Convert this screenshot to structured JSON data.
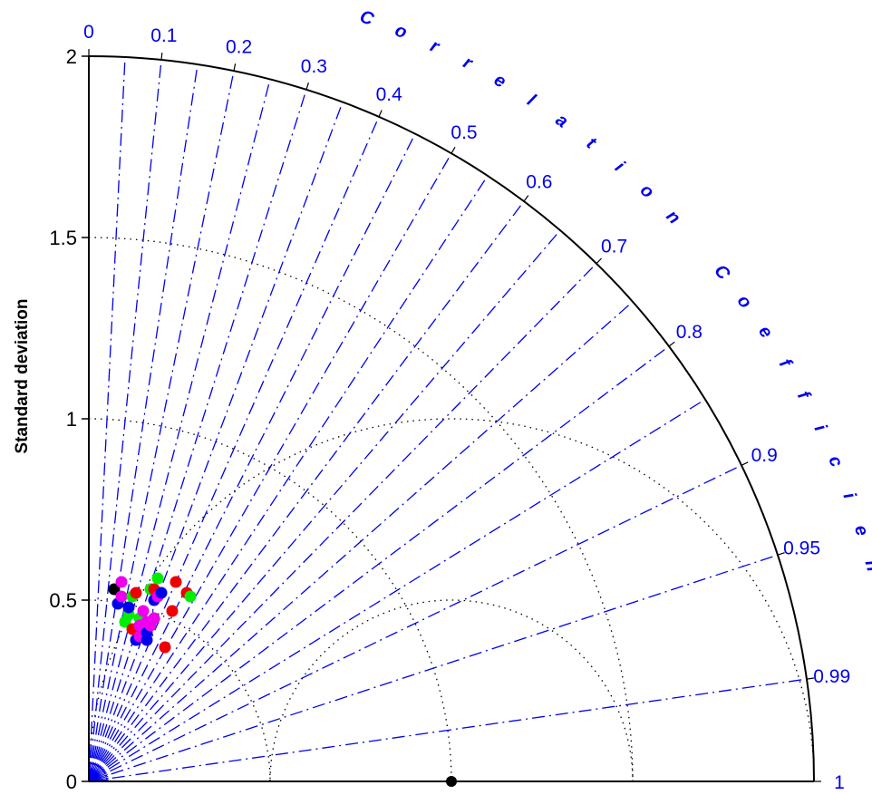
{
  "chart_data": {
    "type": "scatter",
    "subtype": "taylor-diagram",
    "title": "",
    "ylabel": "Standard deviation",
    "arc_label": "Correlation Coefficient",
    "std_max": 2,
    "std_ticks": [
      {
        "value": 0,
        "label": "0"
      },
      {
        "value": 0.5,
        "label": "0.5"
      },
      {
        "value": 1,
        "label": "1"
      },
      {
        "value": 1.5,
        "label": "1.5"
      },
      {
        "value": 2,
        "label": "2"
      }
    ],
    "correlation_ticks": [
      {
        "value": 0,
        "label": "0"
      },
      {
        "value": 0.1,
        "label": "0.1"
      },
      {
        "value": 0.2,
        "label": "0.2"
      },
      {
        "value": 0.3,
        "label": "0.3"
      },
      {
        "value": 0.4,
        "label": "0.4"
      },
      {
        "value": 0.5,
        "label": "0.5"
      },
      {
        "value": 0.6,
        "label": "0.6"
      },
      {
        "value": 0.7,
        "label": "0.7"
      },
      {
        "value": 0.8,
        "label": "0.8"
      },
      {
        "value": 0.9,
        "label": "0.9"
      },
      {
        "value": 0.95,
        "label": "0.95"
      },
      {
        "value": 0.99,
        "label": "0.99"
      },
      {
        "value": 1,
        "label": "1"
      }
    ],
    "std_arcs": [
      0.5,
      1,
      1.5
    ],
    "rms_arcs_centered_on_reference": [
      0.5,
      1.0
    ],
    "reference_point": {
      "std": 1.0,
      "corr": 1.0,
      "color": "#000000"
    },
    "colors": {
      "axis": "#000000",
      "correlation": "#0000ee",
      "red": "#ee0000",
      "green": "#00ee00",
      "blue": "#0000ee",
      "magenta": "#ee00ee",
      "black": "#000000"
    },
    "points": [
      {
        "x": 0.07,
        "y": 0.53,
        "color": "#000000"
      },
      {
        "x": 0.08,
        "y": 0.49,
        "color": "#0000ee"
      },
      {
        "x": 0.09,
        "y": 0.55,
        "color": "#ee00ee"
      },
      {
        "x": 0.09,
        "y": 0.51,
        "color": "#ee00ee"
      },
      {
        "x": 0.1,
        "y": 0.44,
        "color": "#00ee00"
      },
      {
        "x": 0.11,
        "y": 0.46,
        "color": "#00ee00"
      },
      {
        "x": 0.11,
        "y": 0.48,
        "color": "#0000ee"
      },
      {
        "x": 0.12,
        "y": 0.42,
        "color": "#ee0000"
      },
      {
        "x": 0.12,
        "y": 0.51,
        "color": "#00ee00"
      },
      {
        "x": 0.13,
        "y": 0.52,
        "color": "#ee0000"
      },
      {
        "x": 0.14,
        "y": 0.45,
        "color": "#00ee00"
      },
      {
        "x": 0.13,
        "y": 0.39,
        "color": "#0000ee"
      },
      {
        "x": 0.14,
        "y": 0.4,
        "color": "#ee00ee"
      },
      {
        "x": 0.14,
        "y": 0.43,
        "color": "#ee00ee"
      },
      {
        "x": 0.15,
        "y": 0.47,
        "color": "#ee00ee"
      },
      {
        "x": 0.16,
        "y": 0.44,
        "color": "#ee00ee"
      },
      {
        "x": 0.16,
        "y": 0.41,
        "color": "#0000ee"
      },
      {
        "x": 0.17,
        "y": 0.53,
        "color": "#00ee00"
      },
      {
        "x": 0.16,
        "y": 0.39,
        "color": "#0000ee"
      },
      {
        "x": 0.17,
        "y": 0.43,
        "color": "#ee00ee"
      },
      {
        "x": 0.18,
        "y": 0.45,
        "color": "#ee00ee"
      },
      {
        "x": 0.18,
        "y": 0.5,
        "color": "#0000ee"
      },
      {
        "x": 0.18,
        "y": 0.53,
        "color": "#ee0000"
      },
      {
        "x": 0.19,
        "y": 0.51,
        "color": "#ee00ee"
      },
      {
        "x": 0.19,
        "y": 0.56,
        "color": "#00ee00"
      },
      {
        "x": 0.2,
        "y": 0.52,
        "color": "#0000ee"
      },
      {
        "x": 0.21,
        "y": 0.37,
        "color": "#ee0000"
      },
      {
        "x": 0.23,
        "y": 0.47,
        "color": "#ee0000"
      },
      {
        "x": 0.24,
        "y": 0.55,
        "color": "#ee0000"
      },
      {
        "x": 0.27,
        "y": 0.52,
        "color": "#ee0000"
      },
      {
        "x": 0.28,
        "y": 0.51,
        "color": "#00ee00"
      }
    ]
  }
}
